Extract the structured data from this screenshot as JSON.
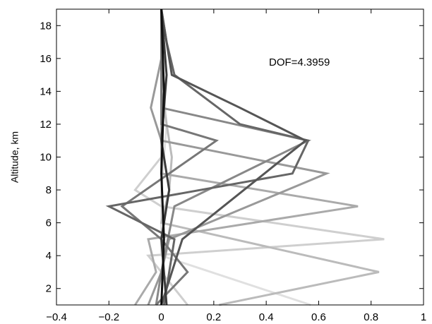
{
  "chart_data": {
    "type": "line",
    "title": "",
    "xlabel": "",
    "ylabel": "Altitude, km",
    "xlim": [
      -0.4,
      1.0
    ],
    "ylim": [
      1,
      19
    ],
    "xticks": [
      "−0.4",
      "−0.2",
      "0",
      "0.2",
      "0.4",
      "0.6",
      "0.8",
      "1"
    ],
    "yticks": [
      "2",
      "4",
      "6",
      "8",
      "10",
      "12",
      "14",
      "16",
      "18"
    ],
    "grid": false,
    "legend": "none",
    "annotation": "DOF=4.3959",
    "series": [
      {
        "color": "#e0e0e0",
        "x": [
          0.57,
          0.0,
          0.0,
          0.0,
          0.01,
          0.02,
          0.01,
          0.0,
          0.0,
          0.0
        ],
        "y": [
          1,
          4,
          6,
          8,
          10,
          12,
          14,
          16,
          18,
          19
        ]
      },
      {
        "color": "#cfcfcf",
        "x": [
          0.1,
          0.0,
          -0.05,
          0.85,
          0.0,
          -0.1,
          0.0,
          0.0,
          0.0,
          0.0
        ],
        "y": [
          1,
          3,
          4,
          5,
          7,
          8,
          10,
          12,
          16,
          19
        ]
      },
      {
        "color": "#bbbbbb",
        "x": [
          0.22,
          0.83,
          0.0,
          0.03,
          0.04,
          0.02,
          0.0,
          0.0,
          0.0
        ],
        "y": [
          1,
          3,
          6,
          8,
          10,
          12,
          14,
          16,
          19
        ]
      },
      {
        "color": "#aaaaaa",
        "x": [
          -0.1,
          -0.02,
          -0.05,
          0.75,
          0.0,
          0.0,
          0.0,
          0.0
        ],
        "y": [
          1,
          3,
          5,
          7,
          9,
          12,
          16,
          19
        ]
      },
      {
        "color": "#999999",
        "x": [
          -0.05,
          0.0,
          0.03,
          0.63,
          0.0,
          -0.04,
          0.0,
          0.0
        ],
        "y": [
          1,
          3,
          5,
          9,
          11,
          13,
          16,
          19
        ]
      },
      {
        "color": "#888888",
        "x": [
          -0.02,
          0.0,
          0.05,
          0.56,
          0.0,
          0.0,
          0.0
        ],
        "y": [
          1,
          3,
          7,
          11,
          13,
          16,
          19
        ]
      },
      {
        "color": "#777777",
        "x": [
          -0.02,
          0.1,
          0.0,
          -0.15,
          0.21,
          0.0,
          0.0,
          0.0
        ],
        "y": [
          1,
          3,
          5,
          7,
          11,
          12,
          16,
          19
        ]
      },
      {
        "color": "#666666",
        "x": [
          0.01,
          0.05,
          -0.2,
          0.5,
          0.56,
          0.3,
          0.05,
          0.02,
          0.0
        ],
        "y": [
          1,
          5,
          7,
          9,
          11,
          12,
          15,
          17,
          19
        ]
      },
      {
        "color": "#555555",
        "x": [
          0.0,
          0.08,
          0.55,
          0.3,
          0.04,
          0.02,
          0.0
        ],
        "y": [
          1,
          5,
          11,
          13,
          15,
          17,
          19
        ]
      },
      {
        "color": "#3a3a3a",
        "x": [
          0.02,
          0.0,
          0.03,
          0.0,
          0.02,
          0.0
        ],
        "y": [
          1,
          5,
          8,
          11,
          15,
          19
        ]
      },
      {
        "color": "#111111",
        "x": [
          0.0,
          0.01,
          0.0,
          0.01,
          0.0
        ],
        "y": [
          1,
          5,
          9,
          14,
          19
        ]
      }
    ]
  }
}
